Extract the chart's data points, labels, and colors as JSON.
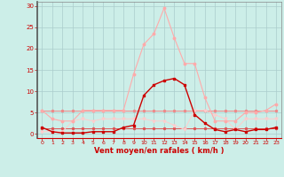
{
  "bg_color": "#cceee8",
  "grid_color": "#aacccc",
  "xlabel": "Vent moyen/en rafales ( km/h )",
  "xlabel_color": "#cc0000",
  "tick_color": "#cc0000",
  "xlim": [
    -0.5,
    23.5
  ],
  "ylim": [
    -1,
    31
  ],
  "yticks": [
    0,
    5,
    10,
    15,
    20,
    25,
    30
  ],
  "xticks": [
    0,
    1,
    2,
    3,
    4,
    5,
    6,
    7,
    8,
    9,
    10,
    11,
    12,
    13,
    14,
    15,
    16,
    17,
    18,
    19,
    20,
    21,
    22,
    23
  ],
  "series": [
    {
      "x": [
        0,
        1,
        2,
        3,
        4,
        5,
        6,
        7,
        8,
        9,
        10,
        11,
        12,
        13,
        14,
        15,
        16,
        17,
        18,
        19,
        20,
        21,
        22,
        23
      ],
      "y": [
        1.5,
        0.5,
        0.2,
        0.2,
        0.2,
        0.5,
        0.5,
        0.5,
        1.5,
        2.0,
        9.0,
        11.5,
        12.5,
        13.0,
        11.5,
        4.5,
        2.5,
        1.0,
        0.5,
        1.0,
        0.5,
        1.0,
        1.0,
        1.5
      ],
      "color": "#cc0000",
      "lw": 1.0,
      "marker": "s",
      "ms": 1.8,
      "zorder": 5
    },
    {
      "x": [
        0,
        1,
        2,
        3,
        4,
        5,
        6,
        7,
        8,
        9,
        10,
        11,
        12,
        13,
        14,
        15,
        16,
        17,
        18,
        19,
        20,
        21,
        22,
        23
      ],
      "y": [
        5.5,
        3.5,
        3.0,
        3.0,
        5.5,
        5.5,
        5.5,
        5.5,
        5.5,
        14.0,
        21.0,
        23.5,
        29.5,
        22.5,
        16.5,
        16.5,
        8.5,
        3.0,
        3.0,
        3.0,
        5.0,
        5.0,
        5.5,
        7.0
      ],
      "color": "#ffaaaa",
      "lw": 0.8,
      "marker": "o",
      "ms": 1.8,
      "zorder": 4
    },
    {
      "x": [
        0,
        1,
        2,
        3,
        4,
        5,
        6,
        7,
        8,
        9,
        10,
        11,
        12,
        13,
        14,
        15,
        16,
        17,
        18,
        19,
        20,
        21,
        22,
        23
      ],
      "y": [
        5.5,
        5.5,
        5.5,
        5.5,
        5.5,
        5.5,
        5.5,
        5.5,
        5.5,
        5.5,
        5.5,
        5.5,
        5.5,
        5.5,
        5.5,
        5.5,
        5.5,
        5.5,
        5.5,
        5.5,
        5.5,
        5.5,
        5.5,
        5.5
      ],
      "color": "#ee8888",
      "lw": 0.7,
      "marker": "o",
      "ms": 1.5,
      "zorder": 3
    },
    {
      "x": [
        0,
        1,
        2,
        3,
        4,
        5,
        6,
        7,
        8,
        9,
        10,
        11,
        12,
        13,
        14,
        15,
        16,
        17,
        18,
        19,
        20,
        21,
        22,
        23
      ],
      "y": [
        1.2,
        1.2,
        1.2,
        1.2,
        1.2,
        1.2,
        1.2,
        1.2,
        1.2,
        1.2,
        1.2,
        1.2,
        1.2,
        1.2,
        1.2,
        1.2,
        1.2,
        1.2,
        1.2,
        1.2,
        1.2,
        1.2,
        1.2,
        1.2
      ],
      "color": "#dd5555",
      "lw": 0.7,
      "marker": "o",
      "ms": 1.5,
      "zorder": 3
    },
    {
      "x": [
        0,
        1,
        2,
        3,
        4,
        5,
        6,
        7,
        8,
        9,
        10,
        11,
        12,
        13,
        14,
        15,
        16,
        17,
        18,
        19,
        20,
        21,
        22,
        23
      ],
      "y": [
        0.5,
        0.5,
        0.5,
        3.0,
        3.5,
        3.0,
        3.5,
        3.5,
        3.5,
        3.5,
        3.5,
        3.0,
        3.0,
        2.0,
        1.0,
        5.5,
        5.5,
        4.5,
        3.5,
        1.0,
        3.5,
        3.5,
        3.5,
        3.5
      ],
      "color": "#ffcccc",
      "lw": 0.7,
      "marker": "v",
      "ms": 2.0,
      "zorder": 3
    }
  ]
}
